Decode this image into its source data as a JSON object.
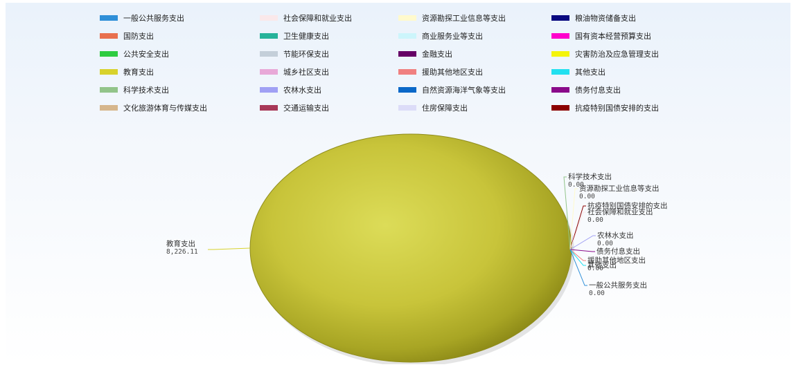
{
  "chart_data": {
    "type": "pie",
    "style": "3d-shaded",
    "legend_position": "top",
    "series": [
      {
        "name": "一般公共服务支出",
        "value": 0,
        "color": "#2f8fd8"
      },
      {
        "name": "社会保障和就业支出",
        "value": 0,
        "color": "#fae8ea"
      },
      {
        "name": "资源勘探工业信息等支出",
        "value": 0,
        "color": "#fffacd"
      },
      {
        "name": "粮油物资储备支出",
        "value": 0,
        "color": "#0a0a80"
      },
      {
        "name": "国防支出",
        "value": 0,
        "color": "#e8704e"
      },
      {
        "name": "卫生健康支出",
        "value": 0,
        "color": "#26b39a"
      },
      {
        "name": "商业服务业等支出",
        "value": 0,
        "color": "#ccf5fb"
      },
      {
        "name": "国有资本经营预算支出",
        "value": 0,
        "color": "#ff00cc"
      },
      {
        "name": "公共安全支出",
        "value": 0,
        "color": "#2ecc40"
      },
      {
        "name": "节能环保支出",
        "value": 0,
        "color": "#c4cfd9"
      },
      {
        "name": "金融支出",
        "value": 0,
        "color": "#660066"
      },
      {
        "name": "灾害防治及应急管理支出",
        "value": 0,
        "color": "#f4f40a"
      },
      {
        "name": "教育支出",
        "value": 8226.11,
        "color": "#d8d22c"
      },
      {
        "name": "城乡社区支出",
        "value": 0,
        "color": "#e8a8d8"
      },
      {
        "name": "援助其他地区支出",
        "value": 0,
        "color": "#f08080"
      },
      {
        "name": "其他支出",
        "value": 0,
        "color": "#22e0f0"
      },
      {
        "name": "科学技术支出",
        "value": 0,
        "color": "#92c48a"
      },
      {
        "name": "农林水支出",
        "value": 0,
        "color": "#a0a0f4"
      },
      {
        "name": "自然资源海洋气象等支出",
        "value": 0,
        "color": "#0a68c8"
      },
      {
        "name": "债务付息支出",
        "value": 0,
        "color": "#8a0a8a"
      },
      {
        "name": "文化旅游体育与传媒支出",
        "value": 0,
        "color": "#d6b68c"
      },
      {
        "name": "交通运输支出",
        "value": 0,
        "color": "#a83858"
      },
      {
        "name": "住房保障支出",
        "value": 0,
        "color": "#dcdcf8"
      },
      {
        "name": "抗疫特别国债安排的支出",
        "value": 0,
        "color": "#8b0000"
      }
    ],
    "data_labels": [
      {
        "name": "教育支出",
        "value_text": "8,226.11",
        "side": "left"
      },
      {
        "name": "科学技术支出",
        "value_text": "0.00",
        "side": "right"
      },
      {
        "name": "资源勘探工业信息等支出",
        "value_text": "0.00",
        "side": "right"
      },
      {
        "name": "抗疫特别国债安排的支出",
        "value_text": "",
        "side": "right"
      },
      {
        "name": "社会保障和就业支出",
        "value_text": "0.00",
        "side": "right"
      },
      {
        "name": "农林水支出",
        "value_text": "0.00",
        "side": "right"
      },
      {
        "name": "债务付息支出",
        "value_text": "",
        "side": "right"
      },
      {
        "name": "援助其他地区支出",
        "value_text": "0.00",
        "side": "right"
      },
      {
        "name": "其他支出",
        "value_text": "",
        "side": "right"
      },
      {
        "name": "一般公共服务支出",
        "value_text": "0.00",
        "side": "right"
      }
    ]
  }
}
